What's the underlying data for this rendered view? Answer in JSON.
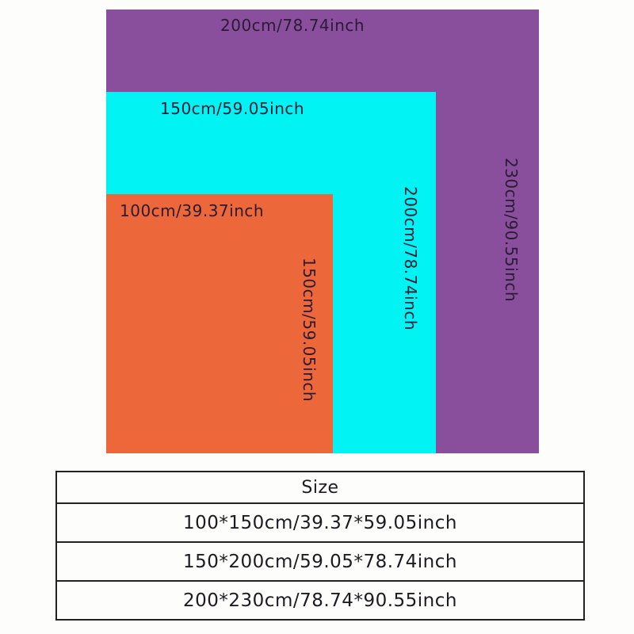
{
  "colors": {
    "large": "#8a4f9c",
    "medium": "#02f3f4",
    "small": "#ec673a"
  },
  "shapes": {
    "large": {
      "width_label": "200cm/78.74inch",
      "height_label": "230cm/90.55inch"
    },
    "medium": {
      "width_label": "150cm/59.05inch",
      "height_label": "200cm/78.74inch"
    },
    "small": {
      "width_label": "100cm/39.37inch",
      "height_label": "150cm/59.05inch"
    }
  },
  "table": {
    "header": "Size",
    "rows": [
      "100*150cm/39.37*59.05inch",
      "150*200cm/59.05*78.74inch",
      "200*230cm/78.74*90.55inch"
    ]
  }
}
